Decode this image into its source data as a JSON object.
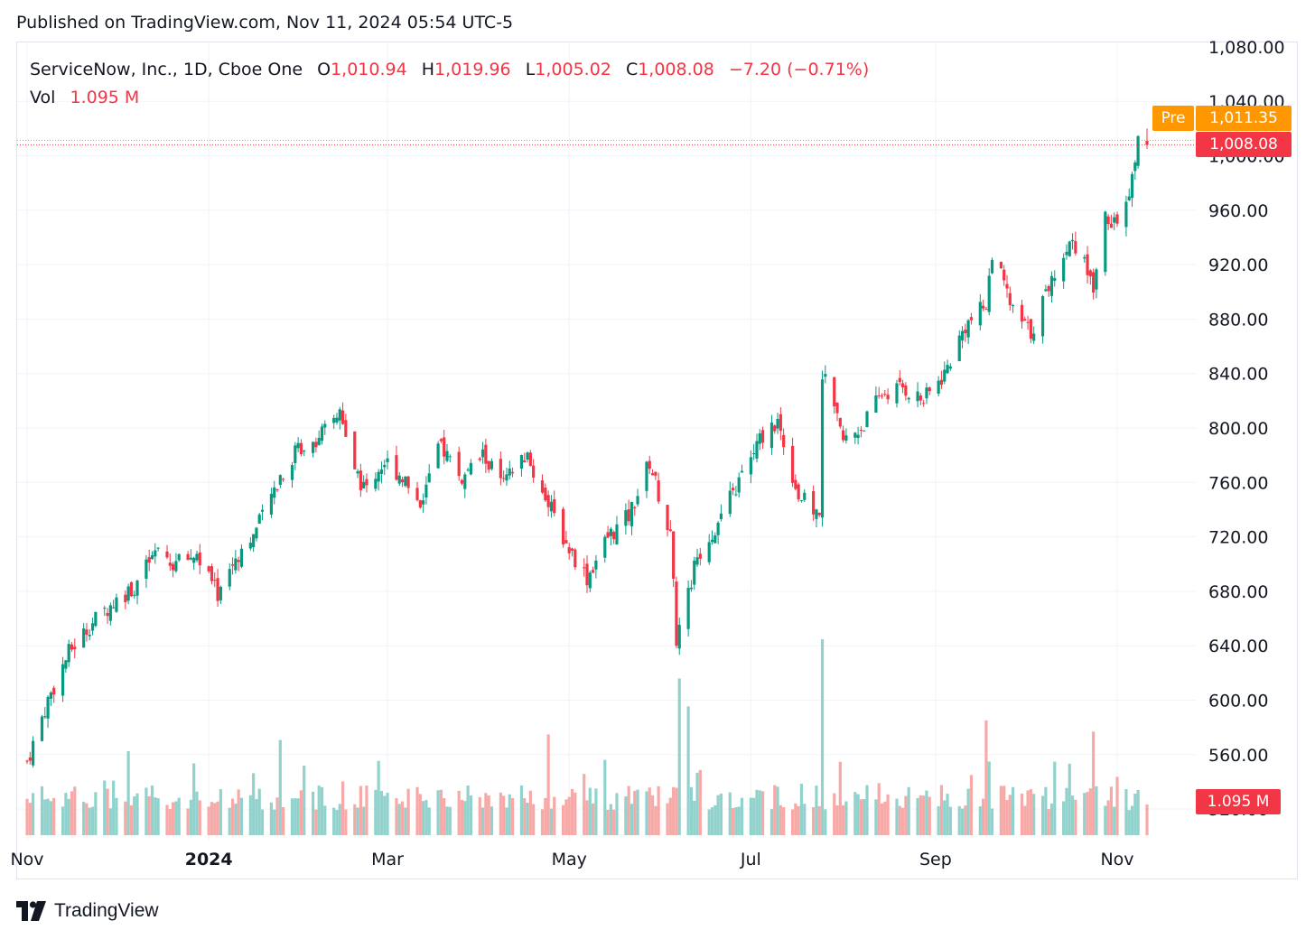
{
  "published": "Published on TradingView.com, Nov 11, 2024 05:54 UTC-5",
  "brand": "TradingView",
  "legend": {
    "symbol": "ServiceNow, Inc., 1D, Cboe One",
    "o_label": "O",
    "o": "1,010.94",
    "h_label": "H",
    "h": "1,019.96",
    "l_label": "L",
    "l": "1,005.02",
    "c_label": "C",
    "c": "1,008.08",
    "change": "−7.20 (−0.71%)",
    "vol_label": "Vol",
    "vol": "1.095 M"
  },
  "badges": {
    "pre_label": "Pre",
    "pre_price": "1,011.35",
    "last_price": "1,008.08",
    "last_vol": "1.095 M"
  },
  "colors": {
    "up": "#089981",
    "down": "#f23645",
    "vol_up": "#92d2cc",
    "vol_down": "#f7a9a7",
    "pre": "#ff9800",
    "grid": "#f0f3fa"
  },
  "chart_data": {
    "type": "candlestick",
    "symbol": "ServiceNow, Inc.",
    "interval": "1D",
    "y_ticks": [
      1080,
      1040,
      1000,
      960,
      920,
      880,
      840,
      800,
      760,
      720,
      680,
      640,
      600,
      560,
      520
    ],
    "y_tick_labels": [
      "1,080.00",
      "1,040.00",
      "1,000.00",
      "960.00",
      "920.00",
      "880.00",
      "840.00",
      "800.00",
      "760.00",
      "720.00",
      "680.00",
      "640.00",
      "600.00",
      "560.00",
      "520.00"
    ],
    "x_ticks": [
      "Nov",
      "2024",
      "Mar",
      "May",
      "Jul",
      "Sep",
      "Nov"
    ],
    "x_tick_dates": [
      "2023-11-01",
      "2024-01-01",
      "2024-03-01",
      "2024-05-01",
      "2024-07-01",
      "2024-09-01",
      "2024-11-01"
    ],
    "x_range": [
      "2023-11-01",
      "2024-11-11"
    ],
    "close_path": [
      [
        "2023-11-01",
        555
      ],
      [
        "2023-11-08",
        600
      ],
      [
        "2023-11-15",
        635
      ],
      [
        "2023-11-22",
        655
      ],
      [
        "2023-11-30",
        672
      ],
      [
        "2023-12-07",
        684
      ],
      [
        "2023-12-14",
        708
      ],
      [
        "2023-12-20",
        700
      ],
      [
        "2023-12-28",
        707
      ],
      [
        "2024-01-04",
        678
      ],
      [
        "2024-01-10",
        705
      ],
      [
        "2024-01-17",
        725
      ],
      [
        "2024-01-25",
        765
      ],
      [
        "2024-01-31",
        785
      ],
      [
        "2024-02-08",
        795
      ],
      [
        "2024-02-14",
        812
      ],
      [
        "2024-02-16",
        790
      ],
      [
        "2024-02-22",
        755
      ],
      [
        "2024-02-29",
        775
      ],
      [
        "2024-03-06",
        765
      ],
      [
        "2024-03-12",
        745
      ],
      [
        "2024-03-19",
        788
      ],
      [
        "2024-03-26",
        762
      ],
      [
        "2024-04-02",
        780
      ],
      [
        "2024-04-09",
        758
      ],
      [
        "2024-04-16",
        780
      ],
      [
        "2024-04-23",
        750
      ],
      [
        "2024-04-30",
        715
      ],
      [
        "2024-05-07",
        690
      ],
      [
        "2024-05-14",
        720
      ],
      [
        "2024-05-21",
        735
      ],
      [
        "2024-05-28",
        775
      ],
      [
        "2024-06-04",
        720
      ],
      [
        "2024-06-06",
        645
      ],
      [
        "2024-06-13",
        705
      ],
      [
        "2024-06-20",
        730
      ],
      [
        "2024-06-27",
        760
      ],
      [
        "2024-07-05",
        795
      ],
      [
        "2024-07-10",
        805
      ],
      [
        "2024-07-17",
        750
      ],
      [
        "2024-07-24",
        735
      ],
      [
        "2024-07-25",
        840
      ],
      [
        "2024-08-01",
        790
      ],
      [
        "2024-08-07",
        800
      ],
      [
        "2024-08-14",
        825
      ],
      [
        "2024-08-21",
        830
      ],
      [
        "2024-08-28",
        820
      ],
      [
        "2024-09-04",
        840
      ],
      [
        "2024-09-11",
        875
      ],
      [
        "2024-09-18",
        890
      ],
      [
        "2024-09-20",
        930
      ],
      [
        "2024-09-27",
        885
      ],
      [
        "2024-10-03",
        870
      ],
      [
        "2024-10-10",
        910
      ],
      [
        "2024-10-17",
        940
      ],
      [
        "2024-10-24",
        905
      ],
      [
        "2024-10-28",
        955
      ],
      [
        "2024-11-01",
        950
      ],
      [
        "2024-11-05",
        968
      ],
      [
        "2024-11-08",
        1015
      ],
      [
        "2024-11-11",
        1008.08
      ]
    ],
    "last_candle": {
      "date": "2024-11-11",
      "open": 1010.94,
      "high": 1019.96,
      "low": 1005.02,
      "close": 1008.08
    },
    "change": -7.2,
    "change_pct": -0.71,
    "pre_market": 1011.35,
    "last_volume_m": 1.095,
    "volume_spikes_m": [
      [
        "2023-12-05",
        3.0
      ],
      [
        "2024-01-25",
        3.4
      ],
      [
        "2024-04-24",
        3.6
      ],
      [
        "2024-06-07",
        5.6
      ],
      [
        "2024-06-10",
        4.6
      ],
      [
        "2024-07-25",
        7.0
      ],
      [
        "2024-09-18",
        4.1
      ],
      [
        "2024-10-24",
        3.7
      ]
    ],
    "grid": true,
    "legend_position": "top-left"
  }
}
